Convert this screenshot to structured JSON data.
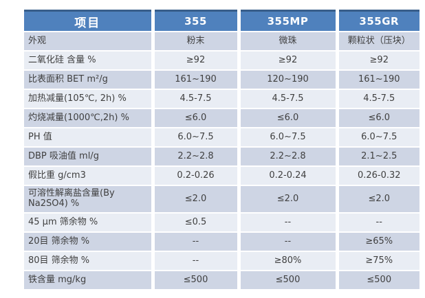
{
  "table": {
    "colors": {
      "header_bg": "#4F81BD",
      "top_border": "#385D8A",
      "band_medium": "#CED5E4",
      "band_light": "#E9EDF4",
      "text": "#3F3F3F"
    },
    "columns": [
      "项目",
      "355",
      "355MP",
      "355GR"
    ],
    "rows": [
      {
        "label": "外观",
        "values": [
          "粉末",
          "微珠",
          "颗粒状（压块）"
        ]
      },
      {
        "label": "二氧化硅 含量 %",
        "values": [
          "≥92",
          "≥92",
          "≥92"
        ]
      },
      {
        "label": "比表面积 BET m²/g",
        "values": [
          "161~190",
          "120~190",
          "161~190"
        ]
      },
      {
        "label": "加热减量(105℃, 2h)  %",
        "values": [
          "4.5-7.5",
          "4.5-7.5",
          "4.5-7.5"
        ]
      },
      {
        "label": "灼烧减量(1000℃,2h)  %",
        "values": [
          "≤6.0",
          "≤6.0",
          "≤6.0"
        ]
      },
      {
        "label": "PH 值",
        "values": [
          "6.0~7.5",
          "6.0~7.5",
          "6.0~7.5"
        ]
      },
      {
        "label": "DBP 吸油值 ml/g",
        "values": [
          "2.2~2.8",
          "2.2~2.8",
          "2.1~2.5"
        ]
      },
      {
        "label": "假比重 g/cm3",
        "values": [
          "0.2-0.26",
          "0.2-0.24",
          "0.26-0.32"
        ]
      },
      {
        "label": "可溶性解离盐含量(By Na2SO4) %",
        "values": [
          "≤2.0",
          "≤2.0",
          "≤2.0"
        ]
      },
      {
        "label": "45 μm 筛余物 %",
        "values": [
          "≤0.5",
          "--",
          "--"
        ]
      },
      {
        "label": "20目 筛余物 %",
        "values": [
          "--",
          "--",
          "≥65%"
        ]
      },
      {
        "label": "80目 筛余物 %",
        "values": [
          "--",
          "≥80%",
          "≥75%"
        ]
      },
      {
        "label": "铁含量 mg/kg",
        "values": [
          "≤500",
          "≤500",
          "≤500"
        ]
      }
    ]
  }
}
